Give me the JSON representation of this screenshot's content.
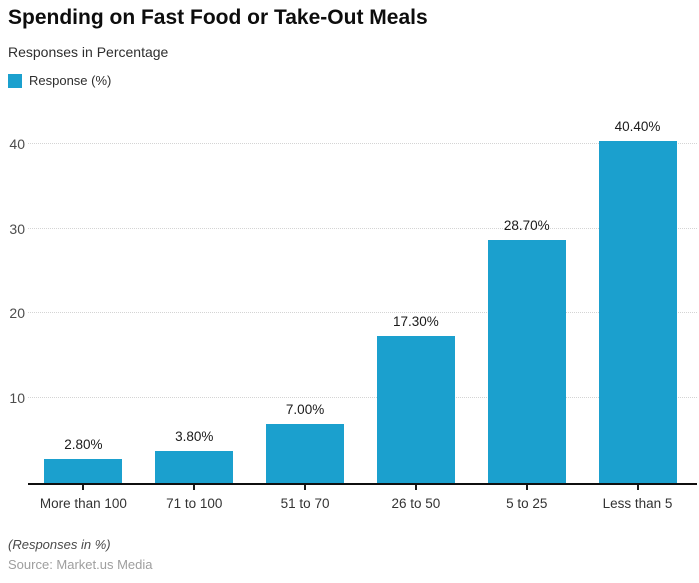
{
  "header": {
    "title": "Spending on Fast Food or Take-Out Meals",
    "subtitle": "Responses in Percentage"
  },
  "legend": {
    "label": "Response (%)",
    "swatch_color": "#1BA0CE"
  },
  "chart_data": {
    "type": "bar",
    "title": "Spending on Fast Food or Take-Out Meals",
    "subtitle": "Responses in Percentage",
    "series_name": "Response (%)",
    "categories": [
      "More than 100",
      "71 to 100",
      "51 to 70",
      "26 to 50",
      "5 to 25",
      "Less than 5"
    ],
    "values": [
      2.8,
      3.8,
      7.0,
      17.3,
      28.7,
      40.4
    ],
    "value_labels": [
      "2.80%",
      "3.80%",
      "7.00%",
      "17.30%",
      "28.70%",
      "40.40%"
    ],
    "xlabel": "",
    "ylabel": "",
    "yticks": [
      10,
      20,
      30,
      40
    ],
    "ylim": [
      0,
      44
    ],
    "grid": true,
    "legend_position": "top-left",
    "bar_color": "#1BA0CE"
  },
  "footer": {
    "note": "(Responses in %)",
    "source": "Source: Market.us Media"
  }
}
